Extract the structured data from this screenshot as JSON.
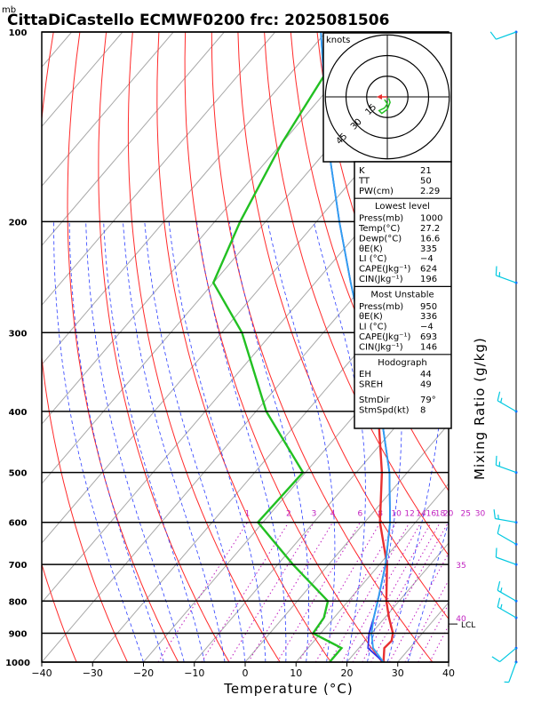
{
  "header": {
    "unit_label": "mb",
    "title": "CittaDiCastello ECMWF0200 frc: 2025081506"
  },
  "hodograph": {
    "unit": "knots",
    "ring_labels": [
      "15",
      "30",
      "45"
    ]
  },
  "x_axis_label": "Temperature (°C)",
  "right_axis_label": "Mixing Ratio (g/kg)",
  "mixing_ratio_labels": [
    "1",
    "2",
    "3",
    "4",
    "6",
    "8",
    "10",
    "12",
    "14",
    "16",
    "18",
    "20",
    "25",
    "30",
    "35",
    "40"
  ],
  "lcl_label": "LCL",
  "indices": {
    "general": [
      {
        "label": "K",
        "value": "21"
      },
      {
        "label": "TT",
        "value": "50"
      },
      {
        "label": "PW(cm)",
        "value": "2.29"
      }
    ],
    "lowest_title": "Lowest level",
    "lowest": [
      {
        "label": "Press(mb)",
        "value": "1000"
      },
      {
        "label": "Temp(°C)",
        "value": "27.2"
      },
      {
        "label": "Dewp(°C)",
        "value": "16.6"
      },
      {
        "label": "θE(K)",
        "value": "335"
      },
      {
        "label": "LI (°C)",
        "value": "−4"
      },
      {
        "label": "CAPE(Jkg⁻¹)",
        "value": "624"
      },
      {
        "label": "CIN(Jkg⁻¹)",
        "value": "196"
      }
    ],
    "unstable_title": "Most Unstable",
    "unstable": [
      {
        "label": "Press(mb)",
        "value": "950"
      },
      {
        "label": "θE(K)",
        "value": "336"
      },
      {
        "label": "LI (°C)",
        "value": "−4"
      },
      {
        "label": "CAPE(Jkg⁻¹)",
        "value": "693"
      },
      {
        "label": "CIN(Jkg⁻¹)",
        "value": "146"
      }
    ],
    "hodo_title": "Hodograph",
    "hodo": [
      {
        "label": "EH",
        "value": "44"
      },
      {
        "label": "SREH",
        "value": "49"
      },
      {
        "label": "StmDir",
        "value": "79°"
      },
      {
        "label": "StmSpd(kt)",
        "value": "8"
      }
    ]
  },
  "chart_data": {
    "type": "line",
    "title": "CittaDiCastello ECMWF0200 frc: 2025081506",
    "xlabel": "Temperature (°C)",
    "ylabel": "mb",
    "xlim": [
      -40,
      40
    ],
    "ylim": [
      1000,
      100
    ],
    "y_scale": "log",
    "x_ticks": [
      -40,
      -30,
      -20,
      -10,
      0,
      10,
      20,
      30,
      40
    ],
    "y_ticks": [
      100,
      200,
      300,
      400,
      500,
      600,
      700,
      800,
      900,
      1000
    ],
    "colors": {
      "temperature": "#e83030",
      "dewpoint": "#22c022",
      "parcel_lowest": "#3030e8",
      "parcel_unstable": "#30a0f0",
      "dry_adiabat": "#ff2a2a",
      "moist_adiabat": "#2a3cff",
      "isotherm": "#a8a8a8",
      "mixing_ratio": "#c020c0",
      "wind": "#00c8e0"
    },
    "series": [
      {
        "name": "Temperature",
        "points": [
          [
            1000,
            27.2
          ],
          [
            950,
            25.0
          ],
          [
            925,
            25.2
          ],
          [
            900,
            24.2
          ],
          [
            850,
            20.8
          ],
          [
            800,
            17.5
          ],
          [
            700,
            11.5
          ],
          [
            600,
            3.0
          ],
          [
            500,
            -5.0
          ],
          [
            400,
            -16.0
          ],
          [
            300,
            -28.5
          ],
          [
            250,
            -37.5
          ],
          [
            200,
            -45.0
          ],
          [
            150,
            -55.0
          ],
          [
            100,
            -65.0
          ]
        ]
      },
      {
        "name": "Dew point",
        "points": [
          [
            1000,
            16.6
          ],
          [
            950,
            16.6
          ],
          [
            900,
            8.5
          ],
          [
            850,
            8.0
          ],
          [
            800,
            6.0
          ],
          [
            700,
            -7.0
          ],
          [
            600,
            -21.0
          ],
          [
            500,
            -20.5
          ],
          [
            400,
            -38.0
          ],
          [
            300,
            -56.0
          ],
          [
            250,
            -70.0
          ],
          [
            200,
            -75.0
          ],
          [
            150,
            -80.0
          ],
          [
            100,
            -85.0
          ]
        ]
      },
      {
        "name": "Parcel (lowest level)",
        "points": [
          [
            1000,
            27.2
          ],
          [
            950,
            21.8
          ],
          [
            900,
            19.5
          ],
          [
            850,
            17.8
          ],
          [
            800,
            15.8
          ],
          [
            700,
            11.2
          ],
          [
            600,
            5.0
          ],
          [
            500,
            -3.5
          ],
          [
            400,
            -15.5
          ],
          [
            300,
            -32.5
          ],
          [
            250,
            -43.0
          ],
          [
            200,
            -55.5
          ],
          [
            150,
            -71.0
          ],
          [
            100,
            -91.0
          ]
        ]
      },
      {
        "name": "Parcel (most unstable)",
        "points": [
          [
            1000,
            27.2
          ],
          [
            950,
            22.8
          ],
          [
            900,
            20.0
          ],
          [
            850,
            17.8
          ],
          [
            800,
            15.8
          ],
          [
            700,
            11.2
          ],
          [
            600,
            5.0
          ],
          [
            500,
            -3.5
          ],
          [
            400,
            -15.5
          ],
          [
            300,
            -32.5
          ],
          [
            250,
            -43.0
          ],
          [
            200,
            -55.5
          ],
          [
            150,
            -71.0
          ],
          [
            100,
            -91.0
          ]
        ]
      }
    ],
    "winds": [
      {
        "p": 100,
        "speed_kt": 10,
        "dir_deg": 250
      },
      {
        "p": 250,
        "speed_kt": 15,
        "dir_deg": 290
      },
      {
        "p": 400,
        "speed_kt": 15,
        "dir_deg": 300
      },
      {
        "p": 500,
        "speed_kt": 15,
        "dir_deg": 290
      },
      {
        "p": 600,
        "speed_kt": 15,
        "dir_deg": 280
      },
      {
        "p": 650,
        "speed_kt": 10,
        "dir_deg": 300
      },
      {
        "p": 700,
        "speed_kt": 10,
        "dir_deg": 290
      },
      {
        "p": 800,
        "speed_kt": 15,
        "dir_deg": 300
      },
      {
        "p": 850,
        "speed_kt": 15,
        "dir_deg": 300
      },
      {
        "p": 950,
        "speed_kt": 10,
        "dir_deg": 230
      },
      {
        "p": 1000,
        "speed_kt": 5,
        "dir_deg": 200
      }
    ],
    "hodograph_points": [
      [
        -2,
        -2
      ],
      [
        0,
        -5
      ],
      [
        -2,
        -8
      ],
      [
        -6,
        -10
      ],
      [
        -4,
        -12
      ],
      [
        0,
        -9
      ],
      [
        2,
        -4
      ],
      [
        1,
        -1
      ]
    ]
  }
}
